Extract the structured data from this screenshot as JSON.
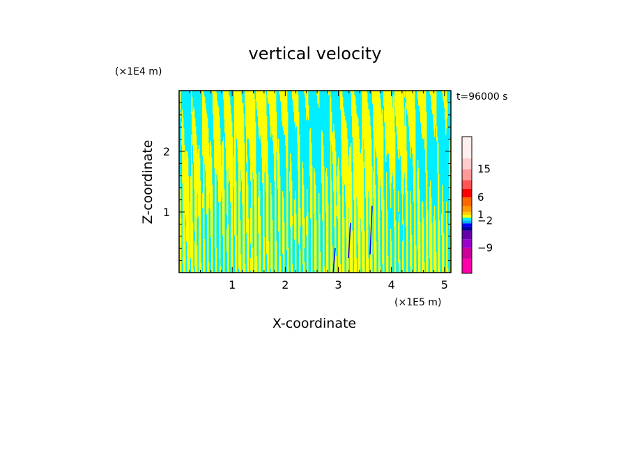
{
  "chart_data": {
    "type": "heatmap",
    "title": "vertical velocity",
    "xlabel": "X-coordinate",
    "ylabel": "Z-coordinate",
    "x_unit": "(×1E5 m)",
    "y_unit": "(×1E4 m)",
    "time_label": "t=96000 s",
    "xlim": [
      0,
      5.12
    ],
    "ylim": [
      0,
      3.0
    ],
    "x_ticks": [
      {
        "value": 1,
        "label": "1"
      },
      {
        "value": 2,
        "label": "2"
      },
      {
        "value": 3,
        "label": "3"
      },
      {
        "value": 4,
        "label": "4"
      },
      {
        "value": 5,
        "label": "5"
      }
    ],
    "y_ticks": [
      {
        "value": 1,
        "label": "1"
      },
      {
        "value": 2,
        "label": "2"
      }
    ],
    "colorbar": {
      "colors": [
        "#ff00aa",
        "#cc0099",
        "#9900cc",
        "#6600aa",
        "#000099",
        "#0000ff",
        "#00aaff",
        "#00eeff",
        "#ffff00",
        "#ffcc00",
        "#ff9900",
        "#ff6600",
        "#ff0000",
        "#ff5555",
        "#ff9999",
        "#ffcccc",
        "#ffeeee"
      ],
      "tick_labels": [
        {
          "label": "15",
          "level_index": 14
        },
        {
          "label": "6",
          "level_index": 11
        },
        {
          "label": "1",
          "level_index": 8
        },
        {
          "label": "−2",
          "level_index": 6
        },
        {
          "label": "−9",
          "level_index": 1
        }
      ]
    },
    "field_colors": {
      "positive": "#ffff00",
      "negative": "#00eeff",
      "strong_negative": "#0000ff"
    }
  }
}
